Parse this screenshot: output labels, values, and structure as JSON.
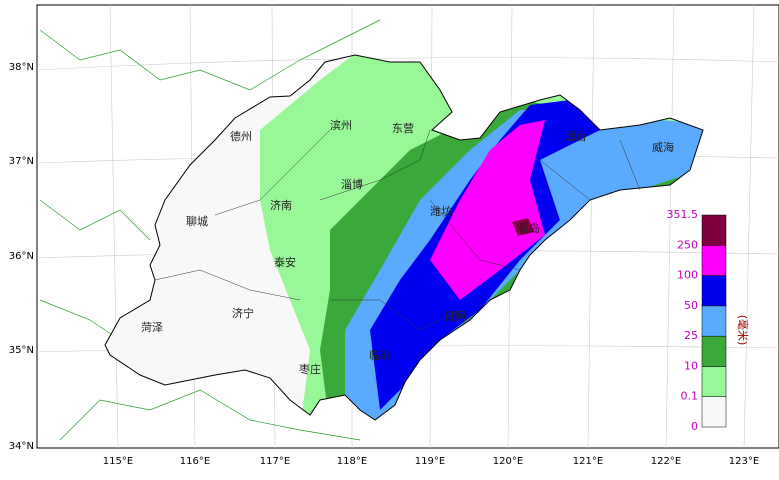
{
  "map": {
    "lat_labels": [
      "38°N",
      "37°N",
      "36°N",
      "35°N",
      "34°N"
    ],
    "lon_labels": [
      "115°E",
      "116°E",
      "117°E",
      "118°E",
      "119°E",
      "120°E",
      "121°E",
      "122°E",
      "123°E"
    ],
    "cities": [
      "德州",
      "滨州",
      "东营",
      "烟台",
      "威海",
      "济南",
      "淄博",
      "潍坊",
      "聊城",
      "青岛",
      "泰安",
      "日照",
      "菏泽",
      "济宁",
      "临沂",
      "枣庄"
    ],
    "legend": {
      "levels": [
        0,
        0.1,
        10,
        25,
        50,
        100,
        250,
        351.5
      ],
      "colors": [
        "#f8f8f8",
        "#98f898",
        "#3aa83a",
        "#5aaaff",
        "#0000f0",
        "#ff00ff",
        "#800040"
      ],
      "unit": "(毫米)"
    }
  }
}
